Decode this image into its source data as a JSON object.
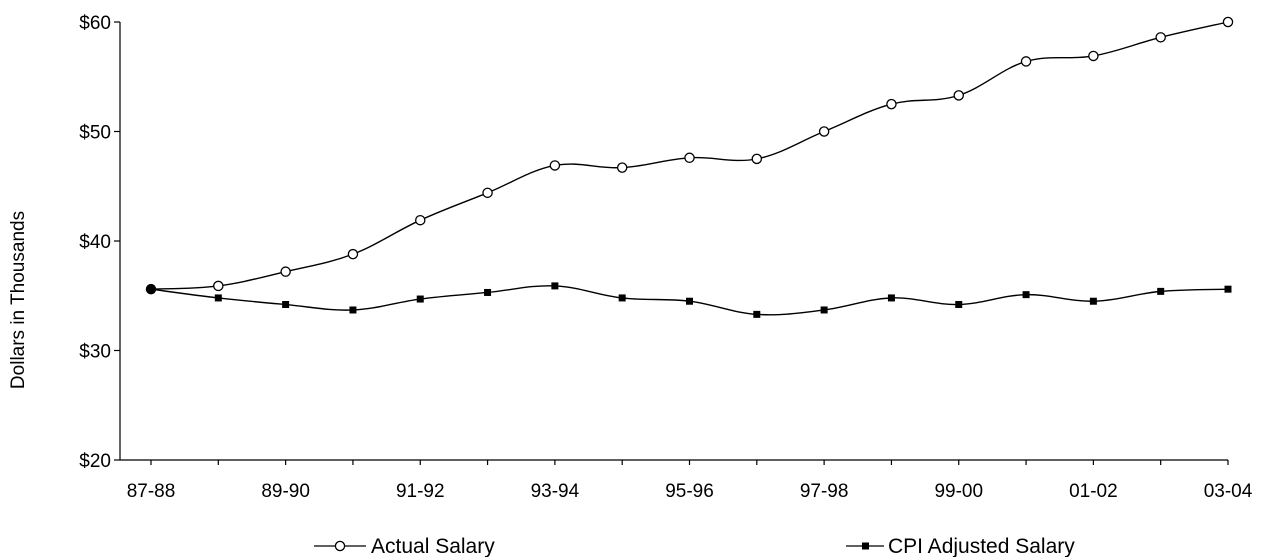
{
  "chart_data": {
    "type": "line",
    "ylabel": "Dollars in Thousands",
    "xlabel": "",
    "ylim": [
      20,
      60
    ],
    "yticks": [
      20,
      30,
      40,
      50,
      60
    ],
    "ytick_labels": [
      "$20",
      "$30",
      "$40",
      "$50",
      "$60"
    ],
    "x": [
      "87-88",
      "88-89",
      "89-90",
      "90-91",
      "91-92",
      "92-93",
      "93-94",
      "94-95",
      "95-96",
      "96-97",
      "97-98",
      "98-99",
      "99-00",
      "00-01",
      "01-02",
      "02-03",
      "03-04"
    ],
    "xtick_labels": [
      "87-88",
      "89-90",
      "91-92",
      "93-94",
      "95-96",
      "97-98",
      "99-00",
      "01-02",
      "03-04"
    ],
    "grid": false,
    "legend_position": "bottom",
    "series": [
      {
        "name": "Actual Salary",
        "marker": "open-circle",
        "color": "#000000",
        "values": [
          35.6,
          35.9,
          37.2,
          38.8,
          41.9,
          44.4,
          46.9,
          46.7,
          47.6,
          47.5,
          50.0,
          52.5,
          53.3,
          56.4,
          56.9,
          58.6,
          60.0
        ]
      },
      {
        "name": "CPI Adjusted Salary",
        "marker": "filled-square",
        "color": "#000000",
        "values": [
          35.6,
          34.8,
          34.2,
          33.7,
          34.7,
          35.3,
          35.9,
          34.8,
          34.5,
          33.3,
          33.7,
          34.8,
          34.2,
          35.1,
          34.5,
          35.4,
          35.6
        ]
      }
    ]
  }
}
